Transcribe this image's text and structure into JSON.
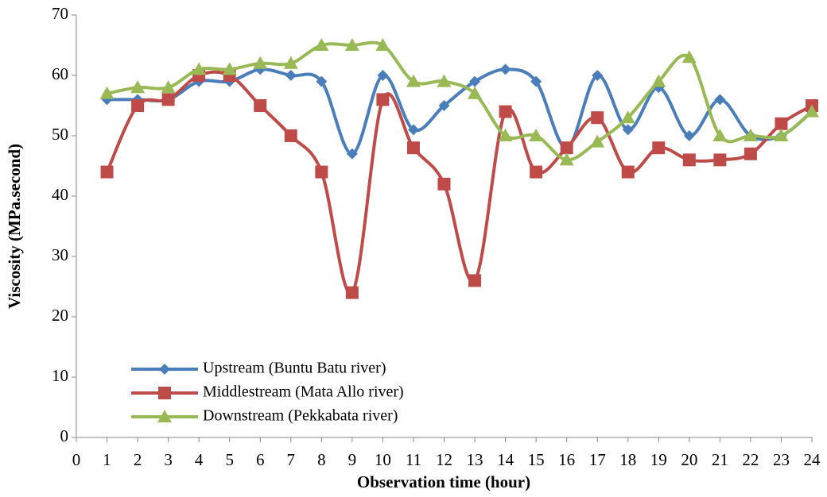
{
  "chart_data": {
    "type": "line",
    "x_label": "Observation time (hour)",
    "y_label": "Viscosity (MPa.second)",
    "x": [
      1,
      2,
      3,
      4,
      5,
      6,
      7,
      8,
      9,
      10,
      11,
      12,
      13,
      14,
      15,
      16,
      17,
      18,
      19,
      20,
      21,
      22,
      23,
      24
    ],
    "series": [
      {
        "name": "Upstream (Buntu Batu river)",
        "color": "#4a7ebb",
        "marker": "diamond",
        "values": [
          56,
          56,
          56,
          59,
          59,
          61,
          60,
          59,
          47,
          60,
          51,
          55,
          59,
          61,
          59,
          48,
          60,
          51,
          58,
          50,
          56,
          50,
          50,
          54
        ]
      },
      {
        "name": "Middlestream (Mata Allo river)",
        "color": "#be4b48",
        "marker": "square",
        "values": [
          44,
          55,
          56,
          60,
          60,
          55,
          50,
          44,
          24,
          56,
          48,
          42,
          26,
          54,
          44,
          48,
          53,
          44,
          48,
          46,
          46,
          47,
          52,
          55
        ]
      },
      {
        "name": "Downstream (Pekkabata river)",
        "color": "#98b954",
        "marker": "triangle",
        "values": [
          57,
          58,
          58,
          61,
          61,
          62,
          62,
          65,
          65,
          65,
          59,
          59,
          57,
          50,
          50,
          46,
          49,
          53,
          59,
          63,
          50,
          50,
          50,
          54
        ]
      }
    ],
    "xlim": [
      0,
      24
    ],
    "xticks": [
      0,
      1,
      2,
      3,
      4,
      5,
      6,
      7,
      8,
      9,
      10,
      11,
      12,
      13,
      14,
      15,
      16,
      17,
      18,
      19,
      20,
      21,
      22,
      23,
      24
    ],
    "ylim": [
      0,
      70
    ],
    "yticks": [
      0,
      10,
      20,
      30,
      40,
      50,
      60,
      70
    ],
    "grid": false,
    "smooth": true,
    "legend": "lower left"
  }
}
